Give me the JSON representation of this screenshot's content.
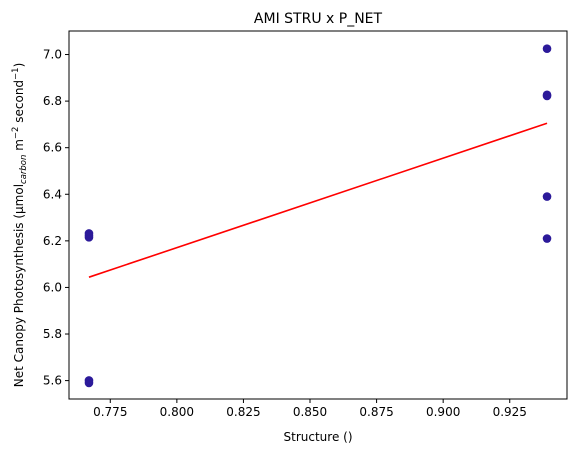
{
  "chart_data": {
    "type": "scatter",
    "title": "AMI STRU x P_NET",
    "xlabel": "Structure ()",
    "ylabel": {
      "prefix": "Net Canopy Photosynthesis (µmol",
      "sub": "carbon",
      "mid1": " m",
      "sup1": "−2",
      "mid2": " second",
      "sup2": "−1",
      "suffix": ")"
    },
    "xlim": [
      0.7595,
      0.9465
    ],
    "ylim": [
      5.521,
      7.101
    ],
    "xticks": [
      0.775,
      0.8,
      0.825,
      0.85,
      0.875,
      0.9,
      0.925
    ],
    "xtick_labels": [
      "0.775",
      "0.800",
      "0.825",
      "0.850",
      "0.875",
      "0.900",
      "0.925"
    ],
    "yticks": [
      5.6,
      5.8,
      6.0,
      6.2,
      6.4,
      6.6,
      6.8,
      7.0
    ],
    "ytick_labels": [
      "5.6",
      "5.8",
      "6.0",
      "6.2",
      "6.4",
      "6.6",
      "6.8",
      "7.0"
    ],
    "grid": false,
    "series": [
      {
        "kind": "points",
        "color": "#2c1a9a",
        "points": [
          [
            0.767,
            5.59
          ],
          [
            0.767,
            5.601
          ],
          [
            0.767,
            6.215
          ],
          [
            0.767,
            6.224
          ],
          [
            0.767,
            6.232
          ],
          [
            0.939,
            6.21
          ],
          [
            0.939,
            6.39
          ],
          [
            0.939,
            6.822
          ],
          [
            0.939,
            6.827
          ],
          [
            0.939,
            7.025
          ]
        ]
      },
      {
        "kind": "fit-line",
        "color": "#ff0000",
        "points": [
          [
            0.767,
            6.044
          ],
          [
            0.939,
            6.705
          ]
        ]
      }
    ]
  }
}
